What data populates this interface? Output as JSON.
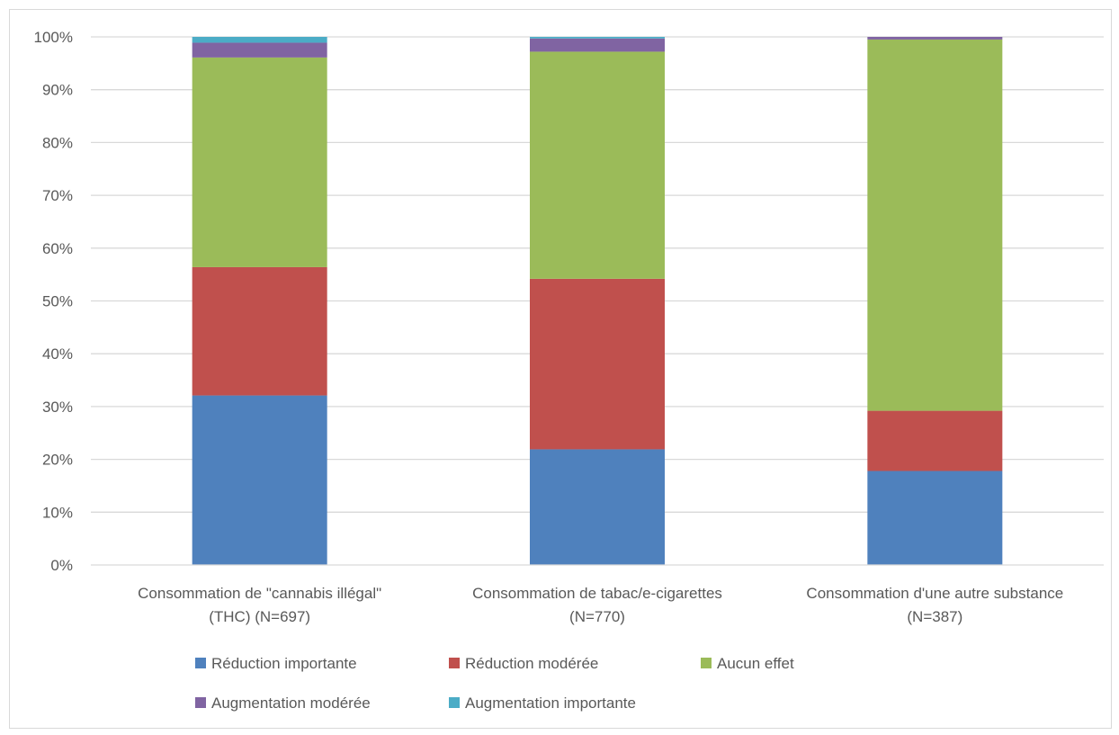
{
  "chart_data": {
    "type": "bar",
    "stacked": true,
    "percent": true,
    "categories": [
      [
        "Consommation de \"cannabis illégal\"",
        "(THC) (N=697)"
      ],
      [
        "Consommation de tabac/e-cigarettes",
        "(N=770)"
      ],
      [
        "Consommation d'une autre substance",
        "(N=387)"
      ]
    ],
    "series": [
      {
        "name": "Réduction importante",
        "color": "#4f81bd",
        "values": [
          32.1,
          21.9,
          17.8
        ]
      },
      {
        "name": "Réduction modérée",
        "color": "#c0504d",
        "values": [
          24.3,
          32.3,
          11.4
        ]
      },
      {
        "name": "Aucun effet",
        "color": "#9bbb59",
        "values": [
          39.7,
          43.0,
          70.3
        ]
      },
      {
        "name": "Augmentation modérée",
        "color": "#8064a2",
        "values": [
          2.8,
          2.5,
          0.5
        ]
      },
      {
        "name": "Augmentation importante",
        "color": "#4bacc6",
        "values": [
          1.1,
          0.3,
          0.0
        ]
      }
    ],
    "ylim": [
      0,
      100
    ],
    "yticks": [
      "0%",
      "10%",
      "20%",
      "30%",
      "40%",
      "50%",
      "60%",
      "70%",
      "80%",
      "90%",
      "100%"
    ],
    "grid": true,
    "legend": "bottom",
    "title": "",
    "xlabel": "",
    "ylabel": ""
  }
}
